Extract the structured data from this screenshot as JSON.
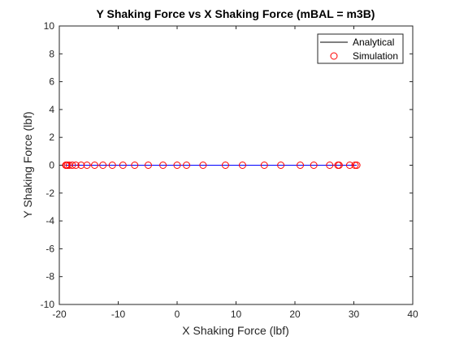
{
  "chart_data": {
    "type": "scatter",
    "title": "Y Shaking Force vs X Shaking Force (mBAL = m3B)",
    "xlabel": "X Shaking Force (lbf)",
    "ylabel": "Y Shaking Force (lbf)",
    "xlim": [
      -20,
      40
    ],
    "ylim": [
      -10,
      10
    ],
    "xticks": [
      -20,
      -10,
      0,
      10,
      20,
      30,
      40
    ],
    "yticks": [
      -10,
      -8,
      -6,
      -4,
      -2,
      0,
      2,
      4,
      6,
      8,
      10
    ],
    "xtick_labels": [
      "-20",
      "-10",
      "0",
      "10",
      "20",
      "30",
      "40"
    ],
    "ytick_labels": [
      "-10",
      "-8",
      "-6",
      "-4",
      "-2",
      "0",
      "2",
      "4",
      "6",
      "8",
      "10"
    ],
    "grid": false,
    "legend_position": "top-right",
    "series": [
      {
        "name": "Analytical",
        "style": "line",
        "color": "#000000",
        "x": [
          -19.0,
          30.5
        ],
        "y": [
          0,
          0
        ]
      },
      {
        "name": "Simulation",
        "style": "circle-marker",
        "color": "#ff0000",
        "x": [
          -18.9,
          -18.8,
          -18.6,
          -18.3,
          -17.8,
          -17.2,
          -16.3,
          -15.3,
          -14.0,
          -12.6,
          -11.0,
          -9.2,
          -7.2,
          -4.9,
          -2.4,
          0.0,
          1.6,
          4.4,
          8.2,
          11.1,
          14.8,
          17.6,
          20.9,
          23.2,
          25.9,
          27.3,
          27.5,
          29.3,
          30.2,
          30.5
        ],
        "y": [
          0,
          0,
          0,
          0,
          0,
          0,
          0,
          0,
          0,
          0,
          0,
          0,
          0,
          0,
          0,
          0,
          0,
          0,
          0,
          0,
          0,
          0,
          0,
          0,
          0,
          0,
          0,
          0,
          0,
          0
        ]
      }
    ]
  },
  "colors": {
    "axis": "#262626",
    "analytical_line": "#000000",
    "zero_line": "#0000ff",
    "simulation_marker": "#ff0000"
  }
}
